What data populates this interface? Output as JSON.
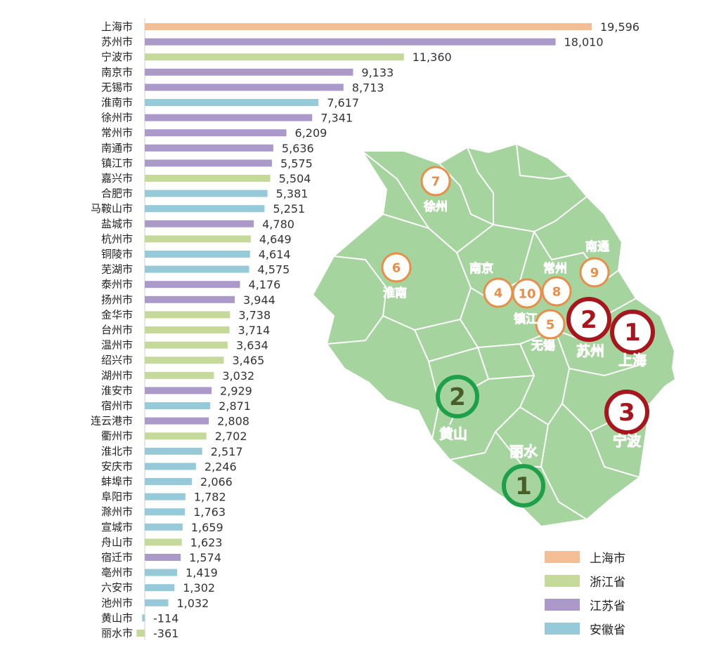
{
  "chart_data": {
    "type": "bar",
    "orientation": "horizontal",
    "categories": [
      "上海市",
      "苏州市",
      "宁波市",
      "南京市",
      "无锡市",
      "淮南市",
      "徐州市",
      "常州市",
      "南通市",
      "镇江市",
      "嘉兴市",
      "合肥市",
      "马鞍山市",
      "盐城市",
      "杭州市",
      "铜陵市",
      "芜湖市",
      "泰州市",
      "扬州市",
      "金华市",
      "台州市",
      "温州市",
      "绍兴市",
      "湖州市",
      "淮安市",
      "宿州市",
      "连云港市",
      "衢州市",
      "淮北市",
      "安庆市",
      "蚌埠市",
      "阜阳市",
      "滁州市",
      "宣城市",
      "舟山市",
      "宿迁市",
      "亳州市",
      "六安市",
      "池州市",
      "黄山市",
      "丽水市"
    ],
    "values": [
      19596,
      18010,
      11360,
      9133,
      8713,
      7617,
      7341,
      6209,
      5636,
      5575,
      5504,
      5381,
      5251,
      4780,
      4649,
      4614,
      4575,
      4176,
      3944,
      3738,
      3714,
      3634,
      3465,
      3032,
      2929,
      2871,
      2808,
      2702,
      2517,
      2246,
      2066,
      1782,
      1763,
      1659,
      1623,
      1574,
      1419,
      1302,
      1032,
      -114,
      -361
    ],
    "value_labels": [
      "19,596",
      "18,010",
      "11,360",
      "9,133",
      "8,713",
      "7,617",
      "7,341",
      "6,209",
      "5,636",
      "5,575",
      "5,504",
      "5,381",
      "5,251",
      "4,780",
      "4,649",
      "4,614",
      "4,575",
      "4,176",
      "3,944",
      "3,738",
      "3,714",
      "3,634",
      "3,465",
      "3,032",
      "2,929",
      "2,871",
      "2,808",
      "2,702",
      "2,517",
      "2,246",
      "2,066",
      "1,782",
      "1,763",
      "1,659",
      "1,623",
      "1,574",
      "1,419",
      "1,302",
      "1,032",
      "-114",
      "-361"
    ],
    "groups": [
      "上海市",
      "江苏省",
      "浙江省",
      "江苏省",
      "江苏省",
      "安徽省",
      "江苏省",
      "江苏省",
      "江苏省",
      "江苏省",
      "浙江省",
      "安徽省",
      "安徽省",
      "江苏省",
      "浙江省",
      "安徽省",
      "安徽省",
      "江苏省",
      "江苏省",
      "浙江省",
      "浙江省",
      "浙江省",
      "浙江省",
      "浙江省",
      "江苏省",
      "安徽省",
      "江苏省",
      "浙江省",
      "安徽省",
      "安徽省",
      "安徽省",
      "安徽省",
      "安徽省",
      "安徽省",
      "浙江省",
      "江苏省",
      "安徽省",
      "安徽省",
      "安徽省",
      "安徽省",
      "浙江省"
    ],
    "legend": [
      {
        "name": "上海市",
        "color": "#f5bd93"
      },
      {
        "name": "浙江省",
        "color": "#c5d99a"
      },
      {
        "name": "江苏省",
        "color": "#ab9ac9"
      },
      {
        "name": "安徽省",
        "color": "#96cad9"
      }
    ],
    "legend_position": "bottom-right",
    "title": "",
    "xlabel": "",
    "ylabel": "",
    "grid": false
  },
  "map": {
    "fill_color": "#a5d49e",
    "top_badges": [
      {
        "rank": "1",
        "city": "上海",
        "color": "#a8161d"
      },
      {
        "rank": "2",
        "city": "苏州",
        "color": "#a8161d"
      },
      {
        "rank": "3",
        "city": "宁波",
        "color": "#a8161d"
      }
    ],
    "bottom_badges": [
      {
        "rank": "1",
        "city": "丽水",
        "color": "#1ea04a"
      },
      {
        "rank": "2",
        "city": "黄山",
        "color": "#1ea04a"
      }
    ],
    "small_badges": [
      {
        "rank": "4",
        "city": "南京"
      },
      {
        "rank": "5",
        "city": "无锡"
      },
      {
        "rank": "6",
        "city": "淮南"
      },
      {
        "rank": "7",
        "city": "徐州"
      },
      {
        "rank": "8",
        "city": "常州"
      },
      {
        "rank": "9",
        "city": "南通"
      },
      {
        "rank": "10",
        "city": "镇江"
      }
    ],
    "small_badge_color": "#e98e48"
  }
}
